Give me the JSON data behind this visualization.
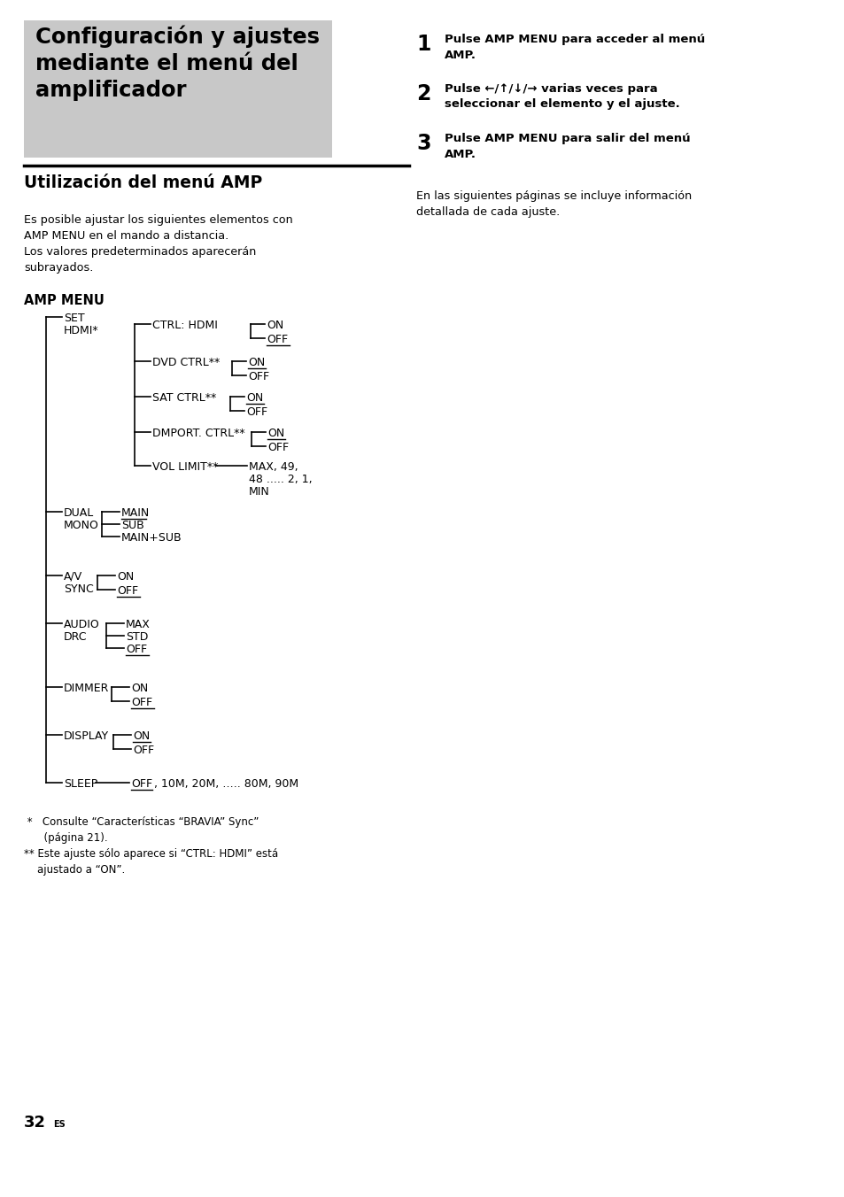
{
  "page_bg": "#ffffff",
  "header_bg": "#c8c8c8",
  "header_text": "Configuración y ajustes\nmediante el menú del\namplificador",
  "section_title": "Utilización del menú AMP",
  "body_text1": "Es posible ajustar los siguientes elementos con\nAMP MENU en el mando a distancia.\nLos valores predeterminados aparecerán\nsubrayados.",
  "amp_menu_label": "AMP MENU",
  "right_body": "En las siguientes páginas se incluye información\ndetallada de cada ajuste.",
  "footnote1": " *   Consulte “Características “BRAVIA” Sync”\n      (página 21).",
  "footnote2": "** Este ajuste sólo aparece si “CTRL: HDMI” está\n    ajustado a “ON”.",
  "page_num": "32",
  "page_num_super": "ES"
}
